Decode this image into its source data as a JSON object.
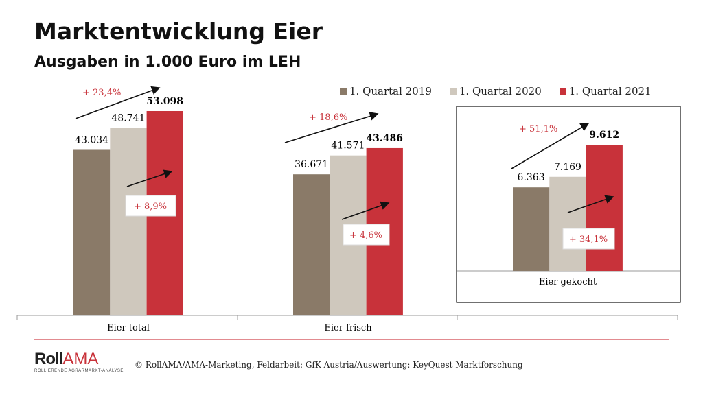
{
  "title": "Marktentwicklung Eier",
  "subtitle": "Ausgaben in 1.000 Euro im LEH",
  "footer": "© RollAMA/AMA-Marketing, Feldarbeit: GfK Austria/Auswertung: KeyQuest Marktforschung",
  "logo": {
    "main1": "Roll",
    "main2": "AMA",
    "sub": "ROLLIERENDE AGRARMARKT-ANALYSE"
  },
  "chart_data": {
    "type": "bar",
    "categories": [
      "Eier total",
      "Eier frisch",
      "Eier gekocht"
    ],
    "series": [
      {
        "name": "1. Quartal 2019",
        "color": "#8a7a68",
        "values": [
          43034,
          36671,
          6363
        ],
        "labels": [
          "43.034",
          "36.671",
          "6.363"
        ]
      },
      {
        "name": "1. Quartal 2020",
        "color": "#cfc8bd",
        "values": [
          48741,
          41571,
          7169
        ],
        "labels": [
          "48.741",
          "41.571",
          "7.169"
        ]
      },
      {
        "name": "1. Quartal 2021",
        "color": "#c8323a",
        "values": [
          53098,
          43486,
          9612
        ],
        "labels": [
          "53.098",
          "43.486",
          "9.612"
        ]
      }
    ],
    "annotations": {
      "change_2019_2021": [
        "+ 23,4%",
        "+ 18,6%",
        "+ 51,1%"
      ],
      "change_2020_2021": [
        "+ 8,9%",
        "+ 4,6%",
        "+ 34,1%"
      ]
    },
    "legend": "top-right"
  }
}
